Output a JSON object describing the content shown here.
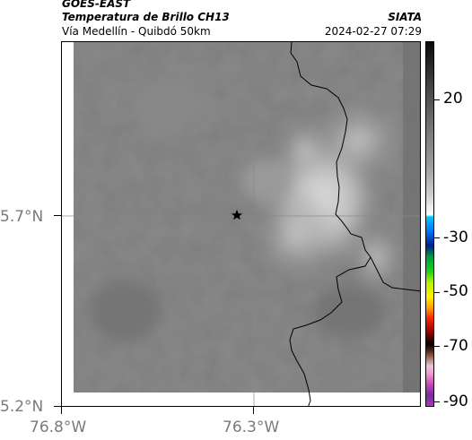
{
  "header": {
    "satellite": "GOES-EAST",
    "product": "Temperatura de Brillo CH13",
    "region": "Vía Medellín - Quibdó 50km",
    "agency": "SIATA",
    "datetime": "2024-02-27 07:29"
  },
  "axes": {
    "lat_labels": [
      "5.7°N",
      "5.2°N"
    ],
    "lon_labels": [
      "76.8°W",
      "76.3°W"
    ]
  },
  "colorbar": {
    "labels": [
      "20",
      "-30",
      "-50",
      "-70",
      "-90"
    ]
  },
  "colors": {
    "background_gray": "#7f7f7f",
    "cloud_light": "#cfcfcf",
    "border_line": "#000000"
  },
  "marker": {
    "icon": "star-icon"
  }
}
